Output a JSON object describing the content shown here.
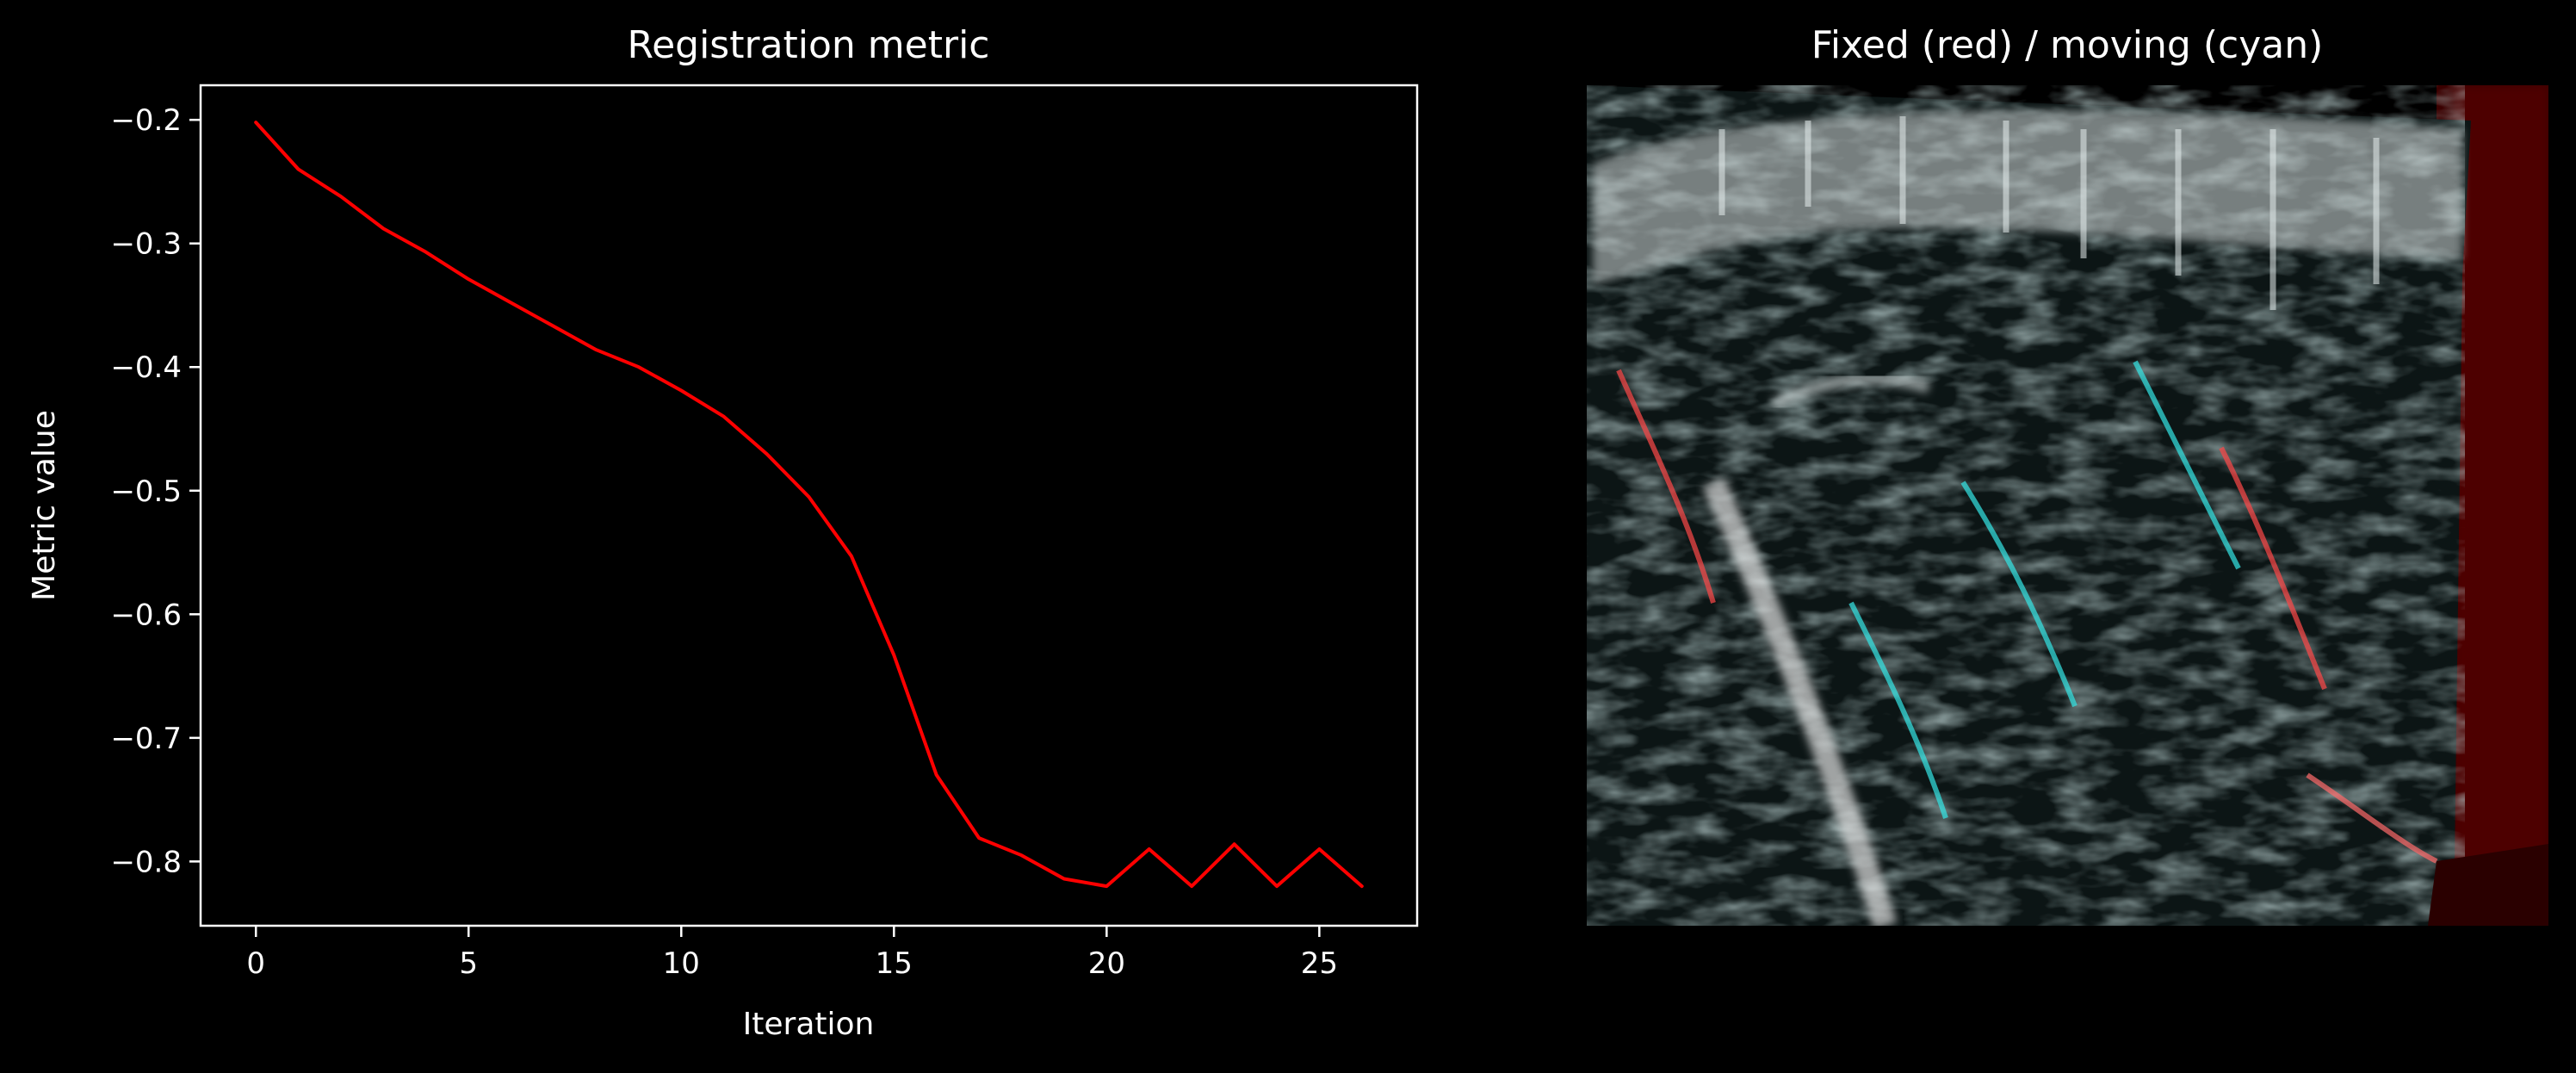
{
  "figure": {
    "background_color": "#000000",
    "foreground_color": "#ffffff"
  },
  "chart_data": [
    {
      "type": "line",
      "title": "Registration metric",
      "xlabel": "Iteration",
      "ylabel": "Metric value",
      "xlim": [
        -1.3,
        27.3
      ],
      "ylim": [
        -0.852,
        -0.172
      ],
      "xticks": [
        0,
        5,
        10,
        15,
        20,
        25
      ],
      "yticks": [
        -0.2,
        -0.3,
        -0.4,
        -0.5,
        -0.6,
        -0.7,
        -0.8
      ],
      "xtick_labels": [
        "0",
        "5",
        "10",
        "15",
        "20",
        "25"
      ],
      "ytick_labels": [
        "−0.2",
        "−0.3",
        "−0.4",
        "−0.5",
        "−0.6",
        "−0.7",
        "−0.8"
      ],
      "grid": false,
      "series": [
        {
          "color": "#ff0000",
          "x": [
            0,
            1,
            2,
            3,
            4,
            5,
            6,
            7,
            8,
            9,
            10,
            11,
            12,
            13,
            14,
            15,
            16,
            17,
            18,
            19,
            20,
            21,
            22,
            23,
            24,
            25,
            26
          ],
          "values": [
            -0.202,
            -0.24,
            -0.262,
            -0.288,
            -0.307,
            -0.329,
            -0.348,
            -0.367,
            -0.386,
            -0.4,
            -0.419,
            -0.44,
            -0.47,
            -0.505,
            -0.553,
            -0.633,
            -0.73,
            -0.781,
            -0.795,
            -0.814,
            -0.82,
            -0.79,
            -0.82,
            -0.786,
            -0.82,
            -0.79,
            -0.82
          ]
        }
      ]
    },
    {
      "type": "image",
      "title": "Fixed (red) / moving (cyan)",
      "colors": {
        "fixed": "#ff3030",
        "moving": "#30e0e0",
        "overlap": "#e8e8e8"
      }
    }
  ]
}
